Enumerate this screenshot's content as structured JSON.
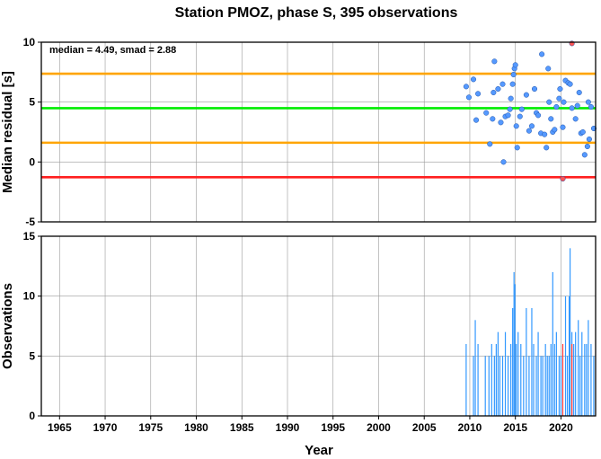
{
  "title": "Station PMOZ, phase S, 395 observations",
  "chart_data": [
    {
      "type": "scatter",
      "ylabel": "Median residual [s]",
      "xlim": [
        1963,
        2023.8
      ],
      "ylim": [
        -5,
        10
      ],
      "yticks": [
        -5,
        0,
        5,
        10
      ],
      "grid": true,
      "annotation": "median = 4.49, smad = 2.88",
      "reference_lines": [
        {
          "y": 7.37,
          "color": "#ffa500"
        },
        {
          "y": 4.49,
          "color": "#00ee00"
        },
        {
          "y": 1.61,
          "color": "#ffa500"
        },
        {
          "y": -1.27,
          "color": "#ff2020"
        }
      ],
      "series": [
        {
          "color": "#5599ff",
          "points": [
            [
              2009.6,
              6.3
            ],
            [
              2009.9,
              5.4
            ],
            [
              2010.4,
              6.9
            ],
            [
              2010.7,
              3.5
            ],
            [
              2010.9,
              5.7
            ],
            [
              2011.8,
              4.1
            ],
            [
              2012.2,
              1.5
            ],
            [
              2012.5,
              3.6
            ],
            [
              2012.6,
              5.8
            ],
            [
              2012.7,
              8.4
            ],
            [
              2013.1,
              6.1
            ],
            [
              2013.4,
              3.3
            ],
            [
              2013.6,
              6.5
            ],
            [
              2013.7,
              0.0
            ],
            [
              2013.9,
              3.8
            ],
            [
              2014.2,
              3.9
            ],
            [
              2014.4,
              4.4
            ],
            [
              2014.5,
              5.3
            ],
            [
              2014.7,
              6.5
            ],
            [
              2014.8,
              7.3
            ],
            [
              2014.9,
              7.8
            ],
            [
              2015.0,
              8.1
            ],
            [
              2015.1,
              3.0
            ],
            [
              2015.2,
              1.2
            ],
            [
              2015.5,
              3.8
            ],
            [
              2015.7,
              4.4
            ],
            [
              2016.2,
              5.6
            ],
            [
              2016.5,
              2.6
            ],
            [
              2016.8,
              3.0
            ],
            [
              2017.1,
              6.1
            ],
            [
              2017.3,
              4.1
            ],
            [
              2017.5,
              3.9
            ],
            [
              2017.8,
              2.4
            ],
            [
              2017.9,
              9.0
            ],
            [
              2018.2,
              2.3
            ],
            [
              2018.4,
              1.2
            ],
            [
              2018.6,
              7.8
            ],
            [
              2018.7,
              5.0
            ],
            [
              2018.9,
              3.6
            ],
            [
              2019.1,
              2.5
            ],
            [
              2019.3,
              2.7
            ],
            [
              2019.5,
              4.6
            ],
            [
              2019.8,
              5.3
            ],
            [
              2019.9,
              6.1
            ],
            [
              2020.2,
              2.9
            ],
            [
              2020.3,
              5.0
            ],
            [
              2020.5,
              6.8
            ],
            [
              2020.8,
              6.6
            ],
            [
              2021.0,
              6.5
            ],
            [
              2021.2,
              4.5
            ],
            [
              2021.6,
              3.6
            ],
            [
              2021.8,
              4.7
            ],
            [
              2022.0,
              5.8
            ],
            [
              2022.2,
              2.4
            ],
            [
              2022.4,
              2.5
            ],
            [
              2022.6,
              0.6
            ],
            [
              2022.9,
              1.3
            ],
            [
              2023.1,
              1.9
            ],
            [
              2023.3,
              4.6
            ],
            [
              2023.6,
              2.8
            ],
            [
              2023.0,
              5.0
            ]
          ]
        },
        {
          "color": "#ff5555",
          "points": [
            [
              2020.2,
              -1.4
            ],
            [
              2021.2,
              9.9
            ]
          ]
        }
      ]
    },
    {
      "type": "bar",
      "xlabel": "Year",
      "ylabel": "Observations",
      "xlim": [
        1963,
        2023.8
      ],
      "ylim": [
        0,
        15
      ],
      "xticks": [
        1965,
        1970,
        1975,
        1980,
        1985,
        1990,
        1995,
        2000,
        2005,
        2010,
        2015,
        2020
      ],
      "yticks": [
        0,
        5,
        10,
        15
      ],
      "grid": true,
      "series": [
        {
          "color": "#3399ff",
          "points": [
            [
              2009.6,
              6
            ],
            [
              2010.4,
              5
            ],
            [
              2010.6,
              8
            ],
            [
              2010.9,
              6
            ],
            [
              2011.7,
              5
            ],
            [
              2012.1,
              5
            ],
            [
              2012.4,
              6
            ],
            [
              2012.7,
              5
            ],
            [
              2012.9,
              6
            ],
            [
              2013.1,
              7
            ],
            [
              2013.3,
              5
            ],
            [
              2013.6,
              5
            ],
            [
              2013.9,
              7
            ],
            [
              2014.2,
              5
            ],
            [
              2014.5,
              6
            ],
            [
              2014.7,
              9
            ],
            [
              2014.85,
              12
            ],
            [
              2014.95,
              11
            ],
            [
              2015.1,
              6
            ],
            [
              2015.3,
              7
            ],
            [
              2015.6,
              6
            ],
            [
              2015.9,
              5
            ],
            [
              2016.2,
              9
            ],
            [
              2016.5,
              5
            ],
            [
              2016.8,
              9
            ],
            [
              2017.0,
              6
            ],
            [
              2017.3,
              5
            ],
            [
              2017.5,
              7
            ],
            [
              2017.8,
              5
            ],
            [
              2018.0,
              5
            ],
            [
              2018.3,
              6
            ],
            [
              2018.5,
              5
            ],
            [
              2018.7,
              5
            ],
            [
              2018.9,
              6
            ],
            [
              2019.1,
              12
            ],
            [
              2019.3,
              6
            ],
            [
              2019.5,
              7
            ],
            [
              2019.8,
              5
            ],
            [
              2020.0,
              5
            ],
            [
              2020.5,
              10
            ],
            [
              2020.7,
              5
            ],
            [
              2020.9,
              10
            ],
            [
              2021.0,
              14
            ],
            [
              2021.2,
              7
            ],
            [
              2021.4,
              6
            ],
            [
              2021.6,
              7
            ],
            [
              2021.9,
              8
            ],
            [
              2022.1,
              5
            ],
            [
              2022.3,
              7
            ],
            [
              2022.6,
              6
            ],
            [
              2022.8,
              6
            ],
            [
              2023.0,
              8
            ],
            [
              2023.3,
              6
            ],
            [
              2023.6,
              5
            ]
          ]
        },
        {
          "color": "#ff3333",
          "points": [
            [
              2020.2,
              6
            ],
            [
              2021.2,
              6
            ]
          ]
        }
      ]
    }
  ]
}
